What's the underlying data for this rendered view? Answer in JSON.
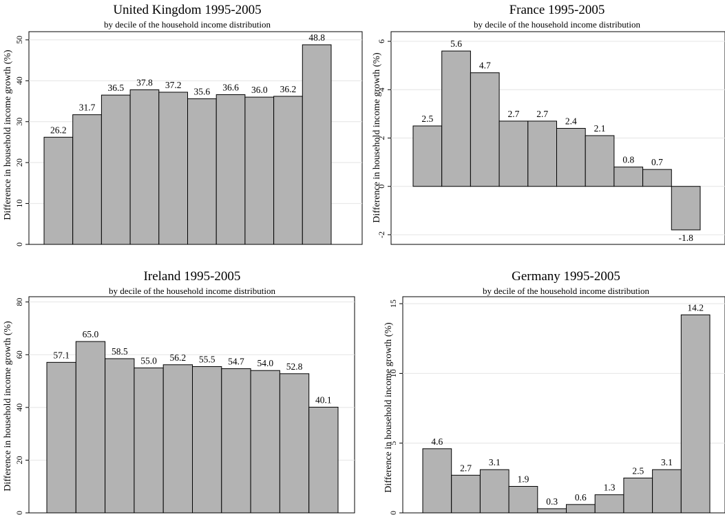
{
  "chart_data": [
    {
      "type": "bar",
      "title": "United Kingdom 1995-2005",
      "subtitle": "by decile of the household income distribution",
      "ylabel": "Difference in household income growth (%)",
      "xlabel": "",
      "ylim": [
        0,
        52
      ],
      "yticks": [
        0,
        10,
        20,
        30,
        40,
        50
      ],
      "grid": true,
      "values": [
        26.2,
        31.7,
        36.5,
        37.8,
        37.2,
        35.6,
        36.6,
        36.0,
        36.2,
        48.8
      ],
      "labels": [
        "26.2",
        "31.7",
        "36.5",
        "37.8",
        "37.2",
        "35.6",
        "36.6",
        "36.0",
        "36.2",
        "48.8"
      ],
      "bar_color": "#b3b3b3"
    },
    {
      "type": "bar",
      "title": "France 1995-2005",
      "subtitle": "by decile of the household income distribution",
      "ylabel": "Difference in household income growth (%)",
      "xlabel": "",
      "ylim": [
        -2.4,
        6.4
      ],
      "yticks": [
        -2,
        0,
        2,
        4,
        6
      ],
      "grid": true,
      "values": [
        2.5,
        5.6,
        4.7,
        2.7,
        2.7,
        2.4,
        2.1,
        0.8,
        0.7,
        -1.8
      ],
      "labels": [
        "2.5",
        "5.6",
        "4.7",
        "2.7",
        "2.7",
        "2.4",
        "2.1",
        "0.8",
        "0.7",
        "-1.8"
      ],
      "bar_color": "#b3b3b3"
    },
    {
      "type": "bar",
      "title": "Ireland 1995-2005",
      "subtitle": "by decile of the household income distribution",
      "ylabel": "Difference in household income growth (%)",
      "xlabel": "",
      "ylim": [
        0,
        82
      ],
      "yticks": [
        0,
        20,
        40,
        60,
        80
      ],
      "grid": true,
      "values": [
        57.1,
        65.0,
        58.5,
        55.0,
        56.2,
        55.5,
        54.7,
        54.0,
        52.8,
        40.1
      ],
      "labels": [
        "57.1",
        "65.0",
        "58.5",
        "55.0",
        "56.2",
        "55.5",
        "54.7",
        "54.0",
        "52.8",
        "40.1"
      ],
      "bar_color": "#b3b3b3"
    },
    {
      "type": "bar",
      "title": "Germany 1995-2005",
      "subtitle": "by decile of the household income distribution",
      "ylabel": "Difference in household income growth (%)",
      "xlabel": "",
      "ylim": [
        0,
        15.5
      ],
      "yticks": [
        0,
        5,
        10,
        15
      ],
      "grid": true,
      "values": [
        4.6,
        2.7,
        3.1,
        1.9,
        0.3,
        0.6,
        1.3,
        2.5,
        3.1,
        14.2
      ],
      "labels": [
        "4.6",
        "2.7",
        "3.1",
        "1.9",
        "0.3",
        "0.6",
        "1.3",
        "2.5",
        "3.1",
        "14.2"
      ],
      "bar_color": "#b3b3b3"
    }
  ]
}
